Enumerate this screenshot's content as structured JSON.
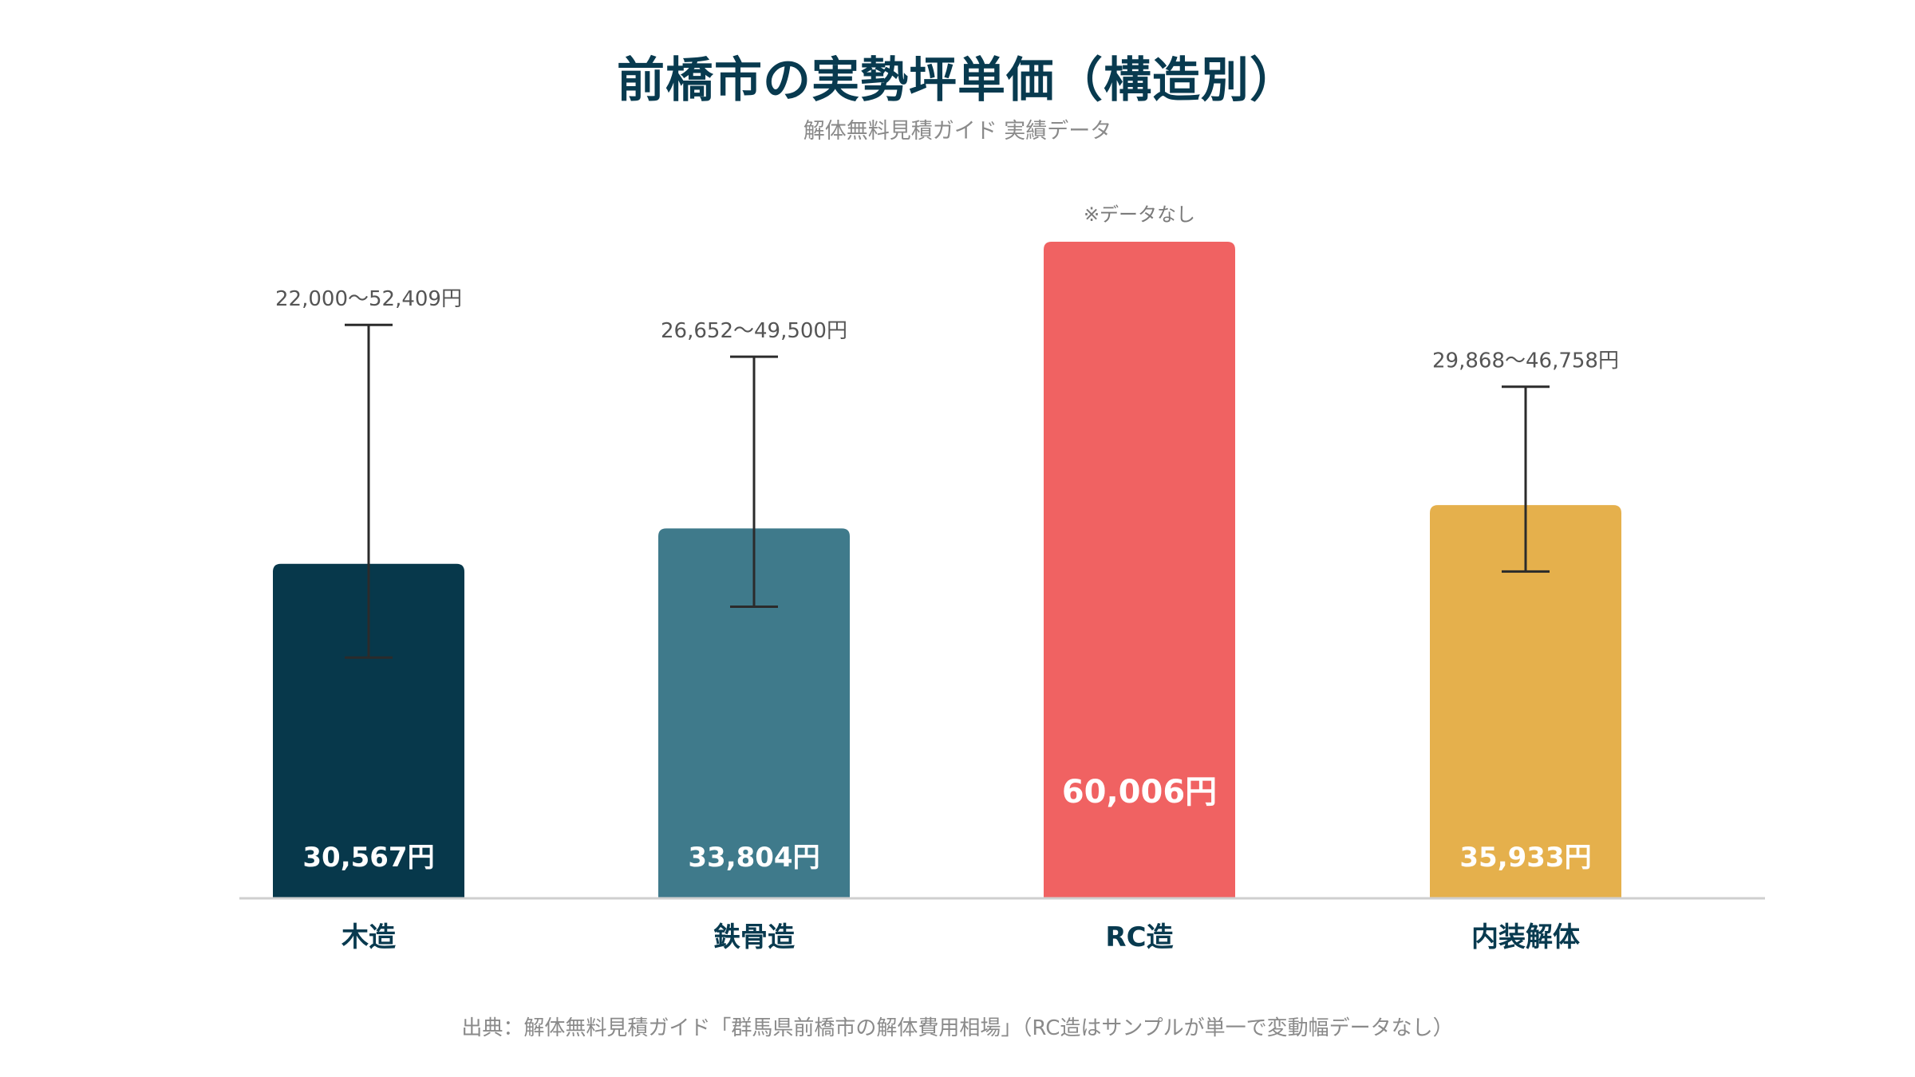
{
  "chart_data": {
    "type": "bar",
    "title": "前橋市の実勢坪単価（構造別）",
    "subtitle": "解体無料見積ガイド 実績データ",
    "source": "出典：解体無料見積ガイド「群馬県前橋市の解体費用相場」（RC造はサンプルが単一で変動幅データなし）",
    "categories": [
      "木造",
      "鉄骨造",
      "RC造",
      "内装解体"
    ],
    "values": [
      30567,
      33804,
      60006,
      35933
    ],
    "value_labels": [
      "30,567円",
      "33,804円",
      "60,006円",
      "35,933円"
    ],
    "ranges": [
      {
        "low": 22000,
        "high": 52409,
        "label": "22,000〜52,409円"
      },
      {
        "low": 26652,
        "high": 49500,
        "label": "26,652〜49,500円"
      },
      null,
      {
        "low": 29868,
        "high": 46758,
        "label": "29,868〜46,758円"
      }
    ],
    "no_data_note": "※データなし",
    "no_data_index": 2,
    "colors": [
      "#07384b",
      "#3f7a8b",
      "#f06262",
      "#e5b04c"
    ],
    "ylim": [
      0,
      60006
    ],
    "grid": false,
    "legend": "none",
    "xlabel": "",
    "ylabel": ""
  }
}
